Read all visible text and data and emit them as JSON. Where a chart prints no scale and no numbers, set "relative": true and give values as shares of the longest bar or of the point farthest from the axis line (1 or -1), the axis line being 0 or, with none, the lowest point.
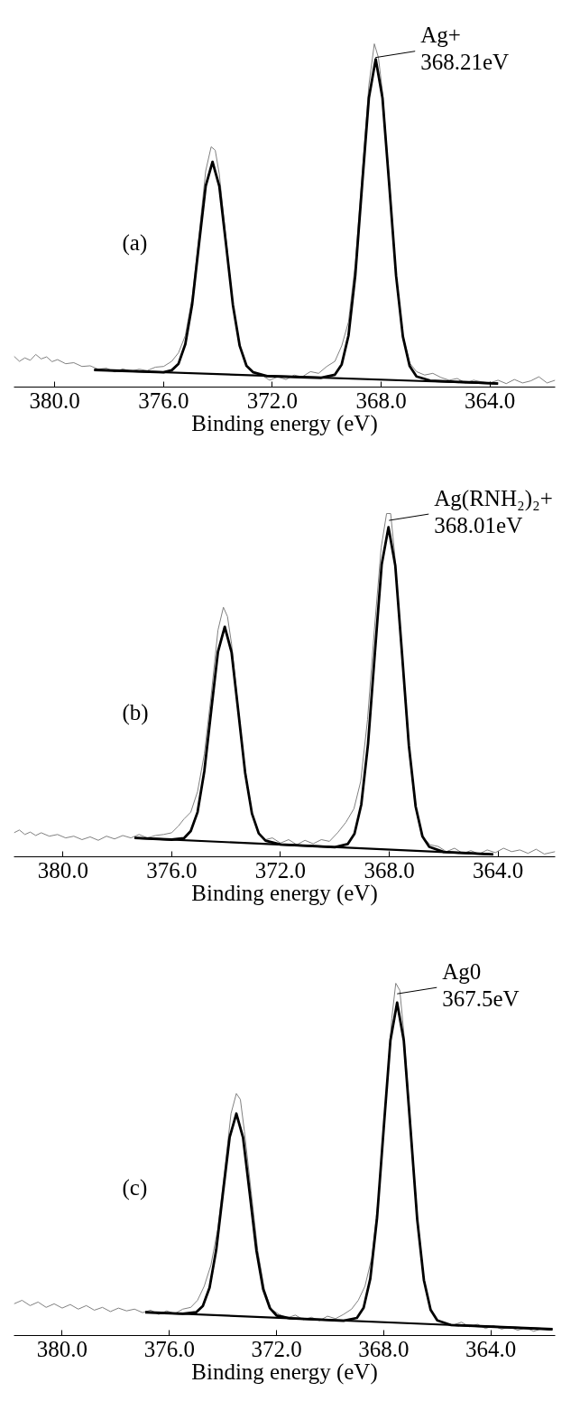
{
  "chart_data": [
    {
      "type": "line",
      "relative": true,
      "xlabel": "Binding energy (eV)",
      "xlim": [
        381.5,
        361.6
      ],
      "xticks": [
        {
          "value": 380,
          "label": "380.0"
        },
        {
          "value": 376,
          "label": "376.0"
        },
        {
          "value": 372,
          "label": "372.0"
        },
        {
          "value": 368,
          "label": "368.0"
        },
        {
          "value": 364,
          "label": "364.0"
        }
      ],
      "grid": false,
      "tick_labels": "x",
      "annotations": [
        "(a)",
        {
          "text": "Ag+\n368.21eV",
          "x": 368.21,
          "y": 0.96
        }
      ],
      "series": [
        {
          "color": "#808080",
          "x": [
            381.5,
            381.3,
            381.1,
            380.9,
            380.7,
            380.5,
            380.3,
            380.1,
            379.9,
            379.6,
            379.3,
            379.0,
            378.7,
            378.4,
            378.1,
            377.8,
            377.5,
            377.2,
            376.9,
            376.6,
            376.3,
            376.0,
            375.7,
            375.45,
            375.2,
            374.95,
            374.7,
            374.45,
            374.25,
            374.1,
            373.95,
            373.7,
            373.45,
            373.2,
            372.95,
            372.7,
            372.4,
            372.1,
            371.8,
            371.5,
            371.2,
            370.9,
            370.6,
            370.3,
            370.0,
            369.7,
            369.45,
            369.2,
            368.95,
            368.7,
            368.45,
            368.25,
            368.1,
            367.95,
            367.7,
            367.45,
            367.2,
            366.95,
            366.7,
            366.4,
            366.1,
            365.8,
            365.5,
            365.2,
            364.9,
            364.6,
            364.3,
            364.0,
            363.7,
            363.4,
            363.1,
            362.8,
            362.5,
            362.2,
            361.9,
            361.6
          ],
          "values": [
            0.09,
            0.075,
            0.085,
            0.078,
            0.095,
            0.082,
            0.088,
            0.074,
            0.08,
            0.068,
            0.071,
            0.06,
            0.062,
            0.052,
            0.055,
            0.044,
            0.053,
            0.046,
            0.052,
            0.048,
            0.058,
            0.06,
            0.075,
            0.1,
            0.15,
            0.26,
            0.44,
            0.63,
            0.7,
            0.69,
            0.62,
            0.43,
            0.24,
            0.12,
            0.06,
            0.045,
            0.035,
            0.02,
            0.03,
            0.022,
            0.035,
            0.03,
            0.045,
            0.04,
            0.06,
            0.075,
            0.12,
            0.19,
            0.36,
            0.62,
            0.88,
            1.0,
            0.96,
            0.86,
            0.6,
            0.33,
            0.15,
            0.07,
            0.045,
            0.035,
            0.04,
            0.028,
            0.02,
            0.025,
            0.012,
            0.02,
            0.015,
            0.012,
            0.02,
            0.01,
            0.022,
            0.012,
            0.018,
            0.03,
            0.012,
            0.02
          ]
        },
        {
          "color": "#000000",
          "x": [
            378.55,
            376.0,
            375.7,
            375.45,
            375.2,
            374.95,
            374.7,
            374.45,
            374.2,
            373.95,
            373.7,
            373.45,
            373.2,
            372.95,
            372.7,
            372.2,
            370.2,
            369.7,
            369.45,
            369.2,
            368.95,
            368.7,
            368.45,
            368.2,
            367.95,
            367.7,
            367.45,
            367.2,
            366.95,
            366.7,
            366.2,
            363.7
          ],
          "values": [
            0.05,
            0.043,
            0.049,
            0.068,
            0.125,
            0.24,
            0.415,
            0.586,
            0.656,
            0.585,
            0.414,
            0.239,
            0.12,
            0.062,
            0.043,
            0.032,
            0.027,
            0.036,
            0.066,
            0.15,
            0.326,
            0.588,
            0.843,
            0.955,
            0.842,
            0.587,
            0.324,
            0.147,
            0.061,
            0.031,
            0.019,
            0.01
          ]
        },
        {
          "color": "#000000",
          "x": [
            378.55,
            363.7
          ],
          "values": [
            0.05,
            0.01
          ]
        }
      ]
    },
    {
      "type": "line",
      "relative": true,
      "xlabel": "Binding energy (eV)",
      "xlim": [
        381.8,
        361.9
      ],
      "xticks": [
        {
          "value": 380,
          "label": "380.0"
        },
        {
          "value": 376,
          "label": "376.0"
        },
        {
          "value": 372,
          "label": "372.0"
        },
        {
          "value": 368,
          "label": "368.0"
        },
        {
          "value": 364,
          "label": "364.0"
        }
      ],
      "grid": false,
      "tick_labels": "x",
      "annotations": [
        "(b)",
        {
          "text": "Ag(RNH₂)₂+\n368.01eV",
          "x": 368.01,
          "y": 0.98
        }
      ],
      "series": [
        {
          "color": "#808080",
          "x": [
            381.8,
            381.6,
            381.4,
            381.2,
            381.0,
            380.8,
            380.5,
            380.2,
            379.9,
            379.6,
            379.3,
            379.0,
            378.7,
            378.4,
            378.1,
            377.8,
            377.5,
            377.2,
            376.9,
            376.6,
            376.3,
            376.0,
            375.75,
            375.55,
            375.3,
            375.05,
            374.8,
            374.55,
            374.3,
            374.1,
            373.95,
            373.8,
            373.55,
            373.3,
            373.05,
            372.8,
            372.55,
            372.3,
            372.0,
            371.7,
            371.4,
            371.1,
            370.8,
            370.5,
            370.2,
            369.9,
            369.6,
            369.3,
            369.05,
            368.8,
            368.55,
            368.3,
            368.1,
            367.95,
            367.8,
            367.55,
            367.3,
            367.05,
            366.8,
            366.5,
            366.2,
            365.9,
            365.6,
            365.3,
            365.0,
            364.7,
            364.4,
            364.1,
            363.8,
            363.5,
            363.2,
            362.9,
            362.6,
            362.3,
            361.9
          ],
          "values": [
            0.07,
            0.078,
            0.065,
            0.072,
            0.062,
            0.07,
            0.06,
            0.065,
            0.055,
            0.06,
            0.05,
            0.058,
            0.048,
            0.06,
            0.052,
            0.062,
            0.055,
            0.065,
            0.055,
            0.062,
            0.065,
            0.07,
            0.09,
            0.11,
            0.13,
            0.19,
            0.3,
            0.47,
            0.66,
            0.727,
            0.7,
            0.62,
            0.43,
            0.25,
            0.125,
            0.065,
            0.05,
            0.055,
            0.04,
            0.05,
            0.035,
            0.048,
            0.038,
            0.05,
            0.045,
            0.07,
            0.1,
            0.14,
            0.22,
            0.4,
            0.66,
            0.9,
            1.0,
            1.0,
            0.88,
            0.6,
            0.33,
            0.15,
            0.06,
            0.035,
            0.03,
            0.015,
            0.025,
            0.01,
            0.018,
            0.008,
            0.02,
            0.012,
            0.025,
            0.015,
            0.02,
            0.01,
            0.022,
            0.008,
            0.015
          ]
        },
        {
          "color": "#000000",
          "x": [
            377.37,
            376.0,
            375.55,
            375.3,
            375.05,
            374.8,
            374.55,
            374.3,
            374.05,
            373.8,
            373.55,
            373.3,
            373.05,
            372.8,
            372.55,
            372.0,
            370.0,
            369.53,
            369.28,
            369.03,
            368.78,
            368.53,
            368.28,
            368.03,
            367.78,
            367.53,
            367.28,
            367.03,
            366.78,
            366.53,
            366.0,
            364.18
          ],
          "values": [
            0.055,
            0.05,
            0.054,
            0.075,
            0.13,
            0.25,
            0.425,
            0.597,
            0.67,
            0.596,
            0.422,
            0.245,
            0.126,
            0.068,
            0.047,
            0.036,
            0.028,
            0.037,
            0.067,
            0.152,
            0.33,
            0.594,
            0.851,
            0.96,
            0.849,
            0.59,
            0.324,
            0.146,
            0.059,
            0.029,
            0.014,
            0.007
          ]
        },
        {
          "color": "#000000",
          "x": [
            377.37,
            364.18
          ],
          "values": [
            0.055,
            0.007
          ]
        }
      ]
    },
    {
      "type": "line",
      "relative": true,
      "xlabel": "Binding energy (eV)",
      "xlim": [
        381.8,
        361.6
      ],
      "xticks": [
        {
          "value": 380,
          "label": "380.0"
        },
        {
          "value": 376,
          "label": "376.0"
        },
        {
          "value": 372,
          "label": "372.0"
        },
        {
          "value": 368,
          "label": "368.0"
        },
        {
          "value": 364,
          "label": "364.0"
        }
      ],
      "grid": false,
      "tick_labels": "x",
      "annotations": [
        "(c)",
        {
          "text": "Ag0\n367.5eV",
          "x": 367.5,
          "y": 0.97
        }
      ],
      "series": [
        {
          "color": "#808080",
          "x": [
            381.8,
            381.5,
            381.2,
            380.9,
            380.6,
            380.3,
            380.0,
            379.7,
            379.4,
            379.1,
            378.8,
            378.5,
            378.2,
            377.9,
            377.6,
            377.3,
            377.0,
            376.7,
            376.4,
            376.1,
            375.8,
            375.5,
            375.2,
            374.95,
            374.7,
            374.45,
            374.2,
            373.95,
            373.7,
            373.5,
            373.35,
            373.2,
            372.95,
            372.7,
            372.45,
            372.2,
            371.9,
            371.6,
            371.3,
            371.0,
            370.7,
            370.4,
            370.1,
            369.8,
            369.5,
            369.2,
            368.95,
            368.7,
            368.45,
            368.2,
            367.95,
            367.7,
            367.55,
            367.4,
            367.25,
            367.0,
            366.75,
            366.5,
            366.25,
            366.0,
            365.7,
            365.4,
            365.1,
            364.8,
            364.5,
            364.2,
            363.9,
            363.6,
            363.3,
            363.0,
            362.7,
            362.4,
            362.1,
            361.8
          ],
          "values": [
            0.09,
            0.1,
            0.085,
            0.095,
            0.08,
            0.09,
            0.078,
            0.088,
            0.075,
            0.085,
            0.072,
            0.08,
            0.068,
            0.078,
            0.07,
            0.075,
            0.065,
            0.072,
            0.06,
            0.07,
            0.062,
            0.075,
            0.08,
            0.1,
            0.14,
            0.2,
            0.3,
            0.46,
            0.63,
            0.687,
            0.67,
            0.58,
            0.41,
            0.24,
            0.13,
            0.075,
            0.06,
            0.05,
            0.058,
            0.045,
            0.052,
            0.042,
            0.055,
            0.048,
            0.06,
            0.075,
            0.1,
            0.14,
            0.22,
            0.39,
            0.64,
            0.9,
            1.0,
            0.98,
            0.86,
            0.6,
            0.34,
            0.16,
            0.075,
            0.045,
            0.035,
            0.03,
            0.038,
            0.025,
            0.032,
            0.02,
            0.028,
            0.018,
            0.025,
            0.015,
            0.022,
            0.012,
            0.02,
            0.015
          ]
        },
        {
          "color": "#000000",
          "x": [
            376.9,
            375.5,
            375.0,
            374.75,
            374.5,
            374.25,
            374.0,
            373.75,
            373.5,
            373.25,
            373.0,
            372.75,
            372.5,
            372.25,
            372.0,
            371.5,
            369.5,
            369.0,
            368.75,
            368.5,
            368.25,
            368.0,
            367.75,
            367.5,
            367.25,
            367.0,
            366.75,
            366.5,
            366.25,
            366.0,
            365.5,
            361.7
          ],
          "values": [
            0.066,
            0.062,
            0.066,
            0.084,
            0.136,
            0.244,
            0.405,
            0.563,
            0.63,
            0.562,
            0.403,
            0.241,
            0.132,
            0.078,
            0.057,
            0.049,
            0.042,
            0.05,
            0.079,
            0.162,
            0.333,
            0.589,
            0.838,
            0.945,
            0.837,
            0.587,
            0.33,
            0.157,
            0.073,
            0.043,
            0.03,
            0.018
          ]
        },
        {
          "color": "#000000",
          "x": [
            376.9,
            361.7
          ],
          "values": [
            0.066,
            0.018
          ]
        }
      ]
    }
  ]
}
